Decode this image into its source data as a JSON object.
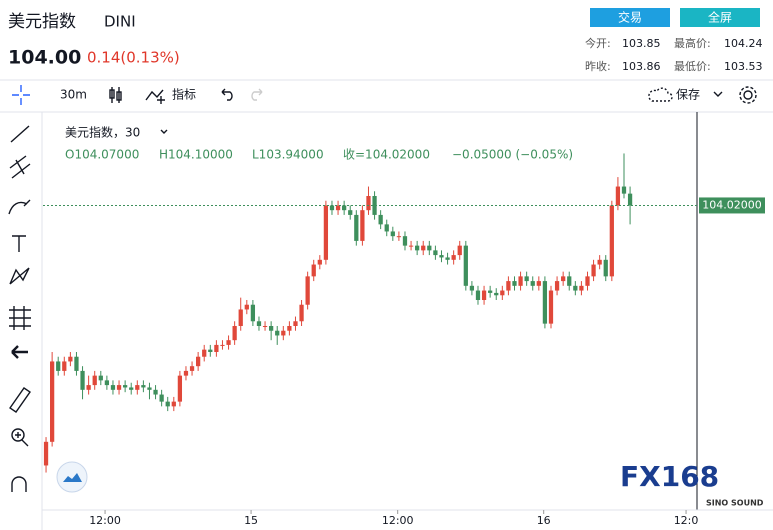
{
  "header": {
    "title": "美元指数",
    "symbol": "DINI",
    "price": "104.00",
    "change": "0.14(0.13%)",
    "buttons": [
      "交易",
      "全屏"
    ],
    "stats": [
      {
        "label": "今开:",
        "value": "103.85"
      },
      {
        "label": "最高价:",
        "value": "104.24"
      },
      {
        "label": "昨收:",
        "value": "103.86"
      },
      {
        "label": "最低价:",
        "value": "103.53"
      }
    ]
  },
  "toolbar": {
    "interval": "30m",
    "indicators": "指标",
    "save": "保存"
  },
  "legend": {
    "name": "美元指数，30",
    "open": "O104.07000",
    "high": "H104.10000",
    "low": "L103.94000",
    "close": "收=104.02000",
    "change": "−0.05000 (−0.05%)"
  },
  "watermark": {
    "brand": "FX168",
    "sub": "SINO SOUND"
  },
  "chart_data": {
    "type": "candlestick",
    "up_color": "#e0483a",
    "down_color": "#3e8f5c",
    "ylim": [
      102.74,
      104.39
    ],
    "xlim": [
      -0.5,
      107
    ],
    "xticks": [
      {
        "value": 9.7,
        "label": "12:00"
      },
      {
        "value": 33.7,
        "label": "15"
      },
      {
        "value": 57.8,
        "label": "12:00"
      },
      {
        "value": 81.8,
        "label": "16"
      },
      {
        "value": 105.2,
        "label": "12:0"
      }
    ],
    "last_price": {
      "value": 104.02,
      "label": "104.02000"
    },
    "open": [
      102.92,
      103.02,
      103.36,
      103.32,
      103.36,
      103.38,
      103.32,
      103.24,
      103.26,
      103.3,
      103.28,
      103.26,
      103.24,
      103.26,
      103.25,
      103.24,
      103.26,
      103.25,
      103.24,
      103.22,
      103.19,
      103.17,
      103.19,
      103.3,
      103.32,
      103.34,
      103.38,
      103.41,
      103.4,
      103.43,
      103.43,
      103.45,
      103.51,
      103.58,
      103.6,
      103.53,
      103.51,
      103.51,
      103.49,
      103.47,
      103.49,
      103.51,
      103.53,
      103.6,
      103.72,
      103.77,
      103.79,
      104.02,
      104.0,
      104.02,
      104.0,
      103.98,
      103.87,
      104.0,
      104.06,
      103.98,
      103.94,
      103.91,
      103.89,
      103.89,
      103.85,
      103.85,
      103.83,
      103.85,
      103.83,
      103.81,
      103.8,
      103.79,
      103.81,
      103.85,
      103.68,
      103.66,
      103.62,
      103.66,
      103.65,
      103.64,
      103.66,
      103.7,
      103.68,
      103.72,
      103.7,
      103.68,
      103.7,
      103.52,
      103.66,
      103.7,
      103.72,
      103.68,
      103.66,
      103.68,
      103.72,
      103.77,
      103.79,
      103.72,
      104.02,
      104.1,
      104.07
    ],
    "high": [
      103.04,
      103.4,
      103.38,
      103.38,
      103.4,
      103.4,
      103.34,
      103.3,
      103.32,
      103.32,
      103.3,
      103.28,
      103.28,
      103.28,
      103.27,
      103.28,
      103.28,
      103.27,
      103.26,
      103.24,
      103.21,
      103.21,
      103.32,
      103.34,
      103.36,
      103.4,
      103.43,
      103.43,
      103.45,
      103.45,
      103.47,
      103.53,
      103.63,
      103.62,
      103.62,
      103.55,
      103.53,
      103.53,
      103.51,
      103.51,
      103.53,
      103.55,
      103.62,
      103.74,
      103.79,
      103.81,
      104.04,
      104.04,
      104.04,
      104.04,
      104.02,
      104.0,
      104.02,
      104.1,
      104.08,
      104.0,
      103.96,
      103.93,
      103.91,
      103.91,
      103.87,
      103.87,
      103.87,
      103.87,
      103.85,
      103.83,
      103.82,
      103.83,
      103.87,
      103.87,
      103.7,
      103.68,
      103.68,
      103.68,
      103.67,
      103.68,
      103.72,
      103.72,
      103.74,
      103.74,
      103.72,
      103.72,
      103.72,
      103.68,
      103.72,
      103.74,
      103.74,
      103.7,
      103.7,
      103.74,
      103.79,
      103.81,
      103.81,
      104.04,
      104.14,
      104.24,
      104.1
    ],
    "low": [
      102.89,
      103.0,
      103.3,
      103.3,
      103.34,
      103.3,
      103.2,
      103.22,
      103.24,
      103.26,
      103.24,
      103.22,
      103.22,
      103.23,
      103.22,
      103.22,
      103.23,
      103.2,
      103.2,
      103.17,
      103.15,
      103.15,
      103.17,
      103.28,
      103.3,
      103.32,
      103.36,
      103.38,
      103.38,
      103.41,
      103.41,
      103.43,
      103.49,
      103.56,
      103.51,
      103.49,
      103.49,
      103.45,
      103.43,
      103.45,
      103.47,
      103.49,
      103.51,
      103.58,
      103.7,
      103.75,
      103.77,
      103.98,
      103.98,
      103.98,
      103.96,
      103.85,
      103.85,
      103.98,
      103.96,
      103.92,
      103.89,
      103.87,
      103.87,
      103.83,
      103.83,
      103.81,
      103.81,
      103.81,
      103.79,
      103.78,
      103.77,
      103.77,
      103.79,
      103.66,
      103.64,
      103.6,
      103.6,
      103.63,
      103.62,
      103.62,
      103.64,
      103.66,
      103.66,
      103.68,
      103.66,
      103.66,
      103.5,
      103.5,
      103.64,
      103.68,
      103.66,
      103.64,
      103.64,
      103.66,
      103.7,
      103.75,
      103.7,
      103.7,
      104.0,
      104.05,
      103.94
    ],
    "close": [
      103.02,
      103.36,
      103.32,
      103.36,
      103.38,
      103.32,
      103.24,
      103.26,
      103.3,
      103.28,
      103.26,
      103.24,
      103.26,
      103.25,
      103.24,
      103.26,
      103.25,
      103.24,
      103.22,
      103.19,
      103.17,
      103.19,
      103.3,
      103.32,
      103.34,
      103.38,
      103.41,
      103.4,
      103.43,
      103.43,
      103.45,
      103.51,
      103.58,
      103.6,
      103.53,
      103.51,
      103.51,
      103.49,
      103.47,
      103.49,
      103.51,
      103.53,
      103.6,
      103.72,
      103.77,
      103.79,
      104.02,
      104.0,
      104.02,
      104.0,
      103.98,
      103.87,
      104.0,
      104.06,
      103.98,
      103.94,
      103.91,
      103.89,
      103.89,
      103.85,
      103.85,
      103.83,
      103.85,
      103.83,
      103.81,
      103.8,
      103.79,
      103.81,
      103.85,
      103.68,
      103.66,
      103.62,
      103.66,
      103.65,
      103.64,
      103.66,
      103.7,
      103.68,
      103.72,
      103.7,
      103.68,
      103.7,
      103.52,
      103.66,
      103.7,
      103.72,
      103.68,
      103.66,
      103.68,
      103.72,
      103.77,
      103.79,
      103.72,
      104.02,
      104.1,
      104.07,
      104.02
    ]
  }
}
